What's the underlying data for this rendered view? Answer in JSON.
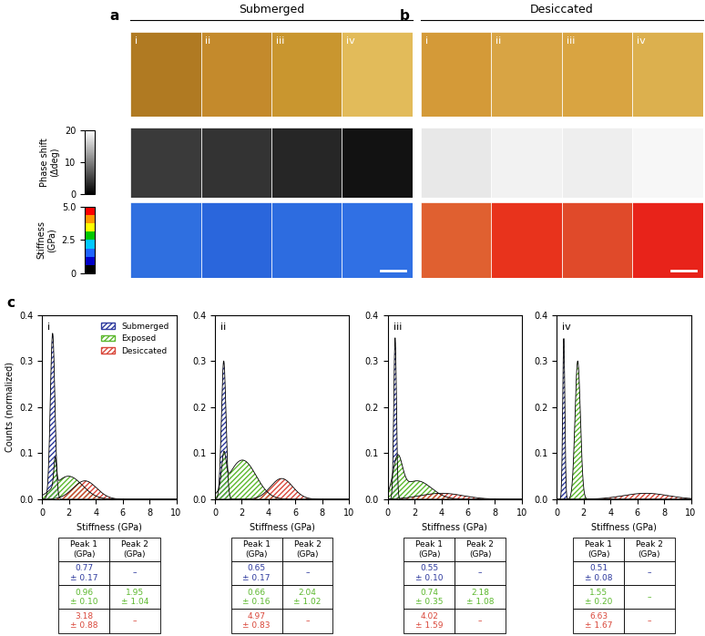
{
  "panels": [
    {
      "label": "a",
      "title": "Submerged",
      "images": [
        "i",
        "ii",
        "iii",
        "iv"
      ]
    },
    {
      "label": "b",
      "title": "Desiccated",
      "images": [
        "i",
        "ii",
        "iii",
        "iv"
      ]
    }
  ],
  "panel_c_label": "c",
  "colorbars": [
    {
      "label": "Phase shift\n(Δdeg)",
      "range": [
        0,
        20
      ],
      "ticks": [
        0,
        10,
        20
      ]
    },
    {
      "label": "Stiffness\n(GPa)",
      "range": [
        0,
        5
      ],
      "ticks": [
        0,
        2.5,
        {
          "value": 5,
          "label": "5.0"
        }
      ]
    }
  ],
  "chart_data": [
    {
      "type": "area",
      "title": "i",
      "xlabel": "Stiffness (GPa)",
      "ylabel": "Counts (normalized)",
      "xlim": [
        0,
        10
      ],
      "ylim": [
        0,
        0.4
      ],
      "xticks": [
        0,
        2,
        4,
        6,
        8,
        10
      ],
      "yticks": [
        {
          "value": 0,
          "label": "0.0"
        },
        0.1,
        0.2,
        0.3,
        0.4
      ],
      "legend": "upper right",
      "series": [
        {
          "name": "Submerged",
          "color": "#2e3a9e",
          "peaks": [
            {
              "mean": 0.77,
              "sd": 0.17,
              "height": 0.36
            }
          ]
        },
        {
          "name": "Exposed",
          "color": "#5cb82e",
          "peaks": [
            {
              "mean": 0.96,
              "sd": 0.1,
              "height": 0.06
            },
            {
              "mean": 1.95,
              "sd": 1.04,
              "height": 0.05
            }
          ]
        },
        {
          "name": "Desiccated",
          "color": "#d9473a",
          "peaks": [
            {
              "mean": 3.18,
              "sd": 0.88,
              "height": 0.04
            }
          ]
        }
      ],
      "table": {
        "columns": [
          "Peak 1\n(GPa)",
          "Peak 2\n(GPa)"
        ],
        "rows": [
          [
            "0.77\n± 0.17",
            "–"
          ],
          [
            "0.96\n± 0.10",
            "1.95\n± 1.04"
          ],
          [
            "3.18\n± 0.88",
            "–"
          ]
        ]
      }
    },
    {
      "type": "area",
      "title": "ii",
      "xlabel": "Stiffness (GPa)",
      "xlim": [
        0,
        10
      ],
      "ylim": [
        0,
        0.4
      ],
      "xticks": [
        0,
        2,
        4,
        6,
        8,
        10
      ],
      "yticks": [
        {
          "value": 0,
          "label": "0.0"
        },
        0.1,
        0.2,
        0.3,
        0.4
      ],
      "series": [
        {
          "color": "#2e3a9e",
          "peaks": [
            {
              "mean": 0.65,
              "sd": 0.17,
              "height": 0.3
            }
          ]
        },
        {
          "color": "#5cb82e",
          "peaks": [
            {
              "mean": 0.66,
              "sd": 0.16,
              "height": 0.07
            },
            {
              "mean": 2.04,
              "sd": 1.02,
              "height": 0.085
            }
          ]
        },
        {
          "color": "#d9473a",
          "peaks": [
            {
              "mean": 4.97,
              "sd": 0.83,
              "height": 0.045
            }
          ]
        }
      ],
      "table": {
        "columns": [
          "Peak 1\n(GPa)",
          "Peak 2\n(GPa)"
        ],
        "rows": [
          [
            "0.65\n± 0.17",
            "–"
          ],
          [
            "0.66\n± 0.16",
            "2.04\n± 1.02"
          ],
          [
            "4.97\n± 0.83",
            "–"
          ]
        ]
      }
    },
    {
      "type": "area",
      "title": "iii",
      "xlabel": "Stiffness (GPa)",
      "xlim": [
        0,
        10
      ],
      "ylim": [
        0,
        0.4
      ],
      "xticks": [
        0,
        2,
        4,
        6,
        8,
        10
      ],
      "yticks": [
        {
          "value": 0,
          "label": "0.0"
        },
        0.1,
        0.2,
        0.3,
        0.4
      ],
      "series": [
        {
          "color": "#2e3a9e",
          "peaks": [
            {
              "mean": 0.55,
              "sd": 0.1,
              "height": 0.35
            }
          ]
        },
        {
          "color": "#5cb82e",
          "peaks": [
            {
              "mean": 0.74,
              "sd": 0.35,
              "height": 0.08
            },
            {
              "mean": 2.18,
              "sd": 1.08,
              "height": 0.04
            }
          ]
        },
        {
          "color": "#d9473a",
          "peaks": [
            {
              "mean": 4.02,
              "sd": 1.59,
              "height": 0.013
            }
          ]
        }
      ],
      "table": {
        "columns": [
          "Peak 1\n(GPa)",
          "Peak 2\n(GPa)"
        ],
        "rows": [
          [
            "0.55\n± 0.10",
            "–"
          ],
          [
            "0.74\n± 0.35",
            "2.18\n± 1.08"
          ],
          [
            "4.02\n± 1.59",
            "–"
          ]
        ]
      }
    },
    {
      "type": "area",
      "title": "iv",
      "xlabel": "Stiffness (GPa)",
      "xlim": [
        0,
        10
      ],
      "ylim": [
        0,
        0.4
      ],
      "xticks": [
        0,
        2,
        4,
        6,
        8,
        10
      ],
      "yticks": [
        {
          "value": 0,
          "label": "0.0"
        },
        0.1,
        0.2,
        0.3,
        0.4
      ],
      "series": [
        {
          "color": "#2e3a9e",
          "peaks": [
            {
              "mean": 0.51,
              "sd": 0.08,
              "height": 0.35
            }
          ]
        },
        {
          "color": "#5cb82e",
          "peaks": [
            {
              "mean": 1.55,
              "sd": 0.2,
              "height": 0.3
            }
          ]
        },
        {
          "color": "#d9473a",
          "peaks": [
            {
              "mean": 6.63,
              "sd": 1.67,
              "height": 0.013
            }
          ]
        }
      ],
      "table": {
        "columns": [
          "Peak 1\n(GPa)",
          "Peak 2\n(GPa)"
        ],
        "rows": [
          [
            "0.51\n± 0.08",
            "–"
          ],
          [
            "1.55\n± 0.20",
            "–"
          ],
          [
            "6.63\n± 1.67",
            "–"
          ]
        ]
      }
    }
  ]
}
